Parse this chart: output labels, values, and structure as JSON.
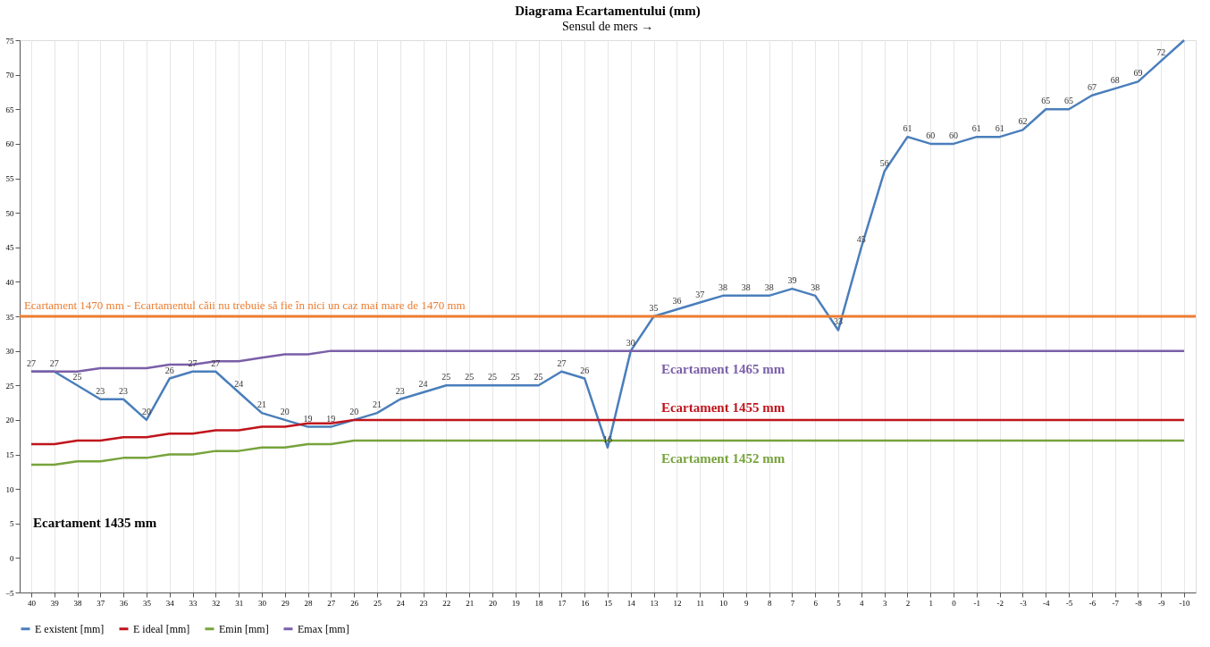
{
  "chart_data": {
    "type": "line",
    "title": "Diagrama Ecartamentului (mm)",
    "subtitle": "Sensul de mers →",
    "categories": [
      "40",
      "39",
      "38",
      "37",
      "36",
      "35",
      "34",
      "33",
      "32",
      "31",
      "30",
      "29",
      "28",
      "27",
      "26",
      "25",
      "24",
      "23",
      "22",
      "21",
      "20",
      "19",
      "18",
      "17",
      "16",
      "15",
      "14",
      "13",
      "12",
      "11",
      "10",
      "9",
      "8",
      "7",
      "6",
      "5",
      "4",
      "3",
      "2",
      "1",
      "0",
      "-1",
      "-2",
      "-3",
      "-4",
      "-5",
      "-6",
      "-7",
      "-8",
      "-9",
      "-10"
    ],
    "series": [
      {
        "name": "E existent [mm]",
        "color": "#4a7ebb",
        "values": [
          27,
          27,
          25,
          23,
          23,
          20,
          26,
          27,
          27,
          24,
          21,
          20,
          19,
          19,
          20,
          21,
          23,
          24,
          25,
          25,
          25,
          25,
          25,
          27,
          26,
          16,
          30,
          35,
          36,
          37,
          38,
          38,
          38,
          39,
          38,
          33,
          45,
          56,
          61,
          60,
          60,
          61,
          61,
          62,
          65,
          65,
          67,
          68,
          69,
          72,
          75
        ],
        "value_labels": [
          "27",
          "27",
          "25",
          "23",
          "23",
          "20",
          "26",
          "27",
          "27",
          "24",
          "21",
          "20",
          "19",
          "19",
          "20",
          "21",
          "23",
          "24",
          "25",
          "25",
          "25",
          "25",
          "25",
          "27",
          "26",
          "16",
          "30",
          "35",
          "36",
          "37",
          "38",
          "38",
          "38",
          "39",
          "38",
          "33",
          "45",
          "56",
          "61",
          "60",
          "60",
          "61",
          "61",
          "62",
          "65",
          "65",
          "67",
          "68",
          "69",
          "72",
          null
        ]
      },
      {
        "name": "E ideal [mm]",
        "color": "#c0141c",
        "values": [
          16.5,
          16.5,
          17,
          17,
          17.5,
          17.5,
          18,
          18,
          18.5,
          18.5,
          19,
          19,
          19.5,
          19.5,
          20,
          20,
          20,
          20,
          20,
          20,
          20,
          20,
          20,
          20,
          20,
          20,
          20,
          20,
          20,
          20,
          20,
          20,
          20,
          20,
          20,
          20,
          20,
          20,
          20,
          20,
          20,
          20,
          20,
          20,
          20,
          20,
          20,
          20,
          20,
          20,
          20
        ]
      },
      {
        "name": "Emin [mm]",
        "color": "#77a33c",
        "values": [
          13.5,
          13.5,
          14,
          14,
          14.5,
          14.5,
          15,
          15,
          15.5,
          15.5,
          16,
          16,
          16.5,
          16.5,
          17,
          17,
          17,
          17,
          17,
          17,
          17,
          17,
          17,
          17,
          17,
          17,
          17,
          17,
          17,
          17,
          17,
          17,
          17,
          17,
          17,
          17,
          17,
          17,
          17,
          17,
          17,
          17,
          17,
          17,
          17,
          17,
          17,
          17,
          17,
          17,
          17
        ]
      },
      {
        "name": "Emax [mm]",
        "color": "#7a5fa8",
        "values": [
          27,
          27,
          27,
          27.5,
          27.5,
          27.5,
          28,
          28,
          28.5,
          28.5,
          29,
          29.5,
          29.5,
          30,
          30,
          30,
          30,
          30,
          30,
          30,
          30,
          30,
          30,
          30,
          30,
          30,
          30,
          30,
          30,
          30,
          30,
          30,
          30,
          30,
          30,
          30,
          30,
          30,
          30,
          30,
          30,
          30,
          30,
          30,
          30,
          30,
          30,
          30,
          30,
          30,
          30
        ]
      }
    ],
    "ylim": [
      -5,
      75
    ],
    "yticks": [
      -5,
      0,
      5,
      10,
      15,
      20,
      25,
      30,
      35,
      40,
      45,
      50,
      55,
      60,
      65,
      70,
      75
    ],
    "ref_lines": [
      {
        "axis": "y",
        "value": 35,
        "label": "Ecartament 1470 mm - Ecartamentul căii nu trebuie să fie în nici un caz mai mare de 1470 mm",
        "color": "#ed7d31"
      }
    ],
    "annotations": [
      {
        "text": "Ecartament 1465 mm",
        "x": "10",
        "y": 30
      },
      {
        "text": "Ecartament 1455 mm",
        "x": "10",
        "y": 20
      },
      {
        "text": "Ecartament 1452 mm",
        "x": "10",
        "y": 17
      },
      "Ecartament 1435 mm"
    ],
    "grid": "x",
    "legend": "bottom",
    "marker": "none",
    "line_style": "solid"
  }
}
